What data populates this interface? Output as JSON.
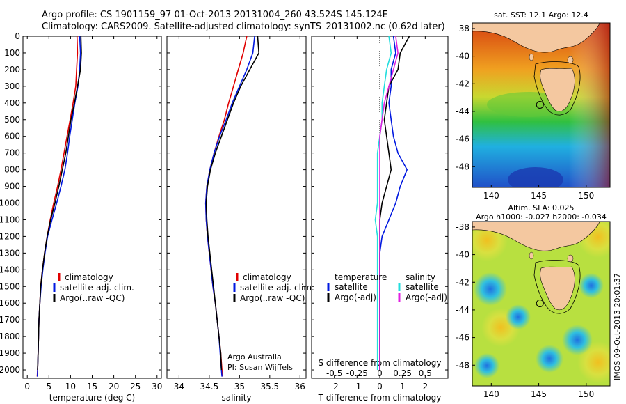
{
  "header": {
    "title_line1": "Argo profile: CS 1901159_97 01-Oct-2013 20131004_260 43.524S 145.124E",
    "title_line2": "Climatology: CARS2009. Satellite-adjusted climatology: synTS_20131002.nc (0.62d later)"
  },
  "colors": {
    "climatology": "#e00000",
    "satellite": "#0018e0",
    "argo": "#000000",
    "salinity_satellite": "#22dddd",
    "salinity_argo": "#e020e0"
  },
  "legend_labels": {
    "climatology": "climatology",
    "satellite_adj": "satellite-adj. clim.",
    "argo_raw": "Argo(..raw -QC)",
    "temperature_head": "temperature",
    "salinity_head": "salinity",
    "satellite": "satellite",
    "argo_adj": "Argo(-adj)"
  },
  "annotations": {
    "argo_australia": "Argo Australia",
    "pi": "PI: Susan Wijffels",
    "timestamp": "IMOS 09-Oct-2013 20:01:37"
  },
  "map_titles": {
    "sst": "sat. SST: 12.1  Argo: 12.4",
    "sla": "Altim. SLA: 0.025",
    "argo_h": "Argo h1000: -0.027 h2000: -0.034"
  },
  "chart_data": [
    {
      "type": "line",
      "name": "temperature-profile",
      "xlabel": "temperature (deg C)",
      "ylabel": "",
      "xlim": [
        -1,
        31
      ],
      "ylim": [
        2050,
        0
      ],
      "xticks": [
        "0",
        "5",
        "10",
        "15",
        "20",
        "25",
        "30"
      ],
      "xtick_values": [
        0,
        5,
        10,
        15,
        20,
        25,
        30
      ],
      "yticks": [
        "0",
        "100",
        "200",
        "300",
        "400",
        "500",
        "600",
        "700",
        "800",
        "900",
        "1000",
        "1100",
        "1200",
        "1300",
        "1400",
        "1500",
        "1600",
        "1700",
        "1800",
        "1900",
        "2000"
      ],
      "ytick_values": [
        0,
        100,
        200,
        300,
        400,
        500,
        600,
        700,
        800,
        900,
        1000,
        1100,
        1200,
        1300,
        1400,
        1500,
        1600,
        1700,
        1800,
        1900,
        2000
      ],
      "series": [
        {
          "name": "climatology",
          "color_key": "climatology",
          "x": [
            11.5,
            11.6,
            11.4,
            11.2,
            10.6,
            9.9,
            9.2,
            8.5,
            7.8,
            7.0,
            6.1,
            5.3,
            4.6,
            4.0,
            3.5,
            3.1,
            2.9,
            2.7,
            2.6,
            2.5,
            2.4,
            2.3
          ],
          "y": [
            0,
            100,
            200,
            300,
            400,
            500,
            600,
            700,
            800,
            900,
            1000,
            1100,
            1200,
            1300,
            1400,
            1500,
            1600,
            1700,
            1800,
            1900,
            2000,
            2040
          ]
        },
        {
          "name": "satellite-adj. clim.",
          "color_key": "satellite",
          "x": [
            12.1,
            12.3,
            12.1,
            11.7,
            11.0,
            10.4,
            9.8,
            9.3,
            8.7,
            7.8,
            6.8,
            5.7,
            4.7,
            4.1,
            3.6,
            3.2,
            2.9,
            2.7,
            2.6,
            2.5,
            2.4,
            2.35
          ],
          "y": [
            0,
            100,
            200,
            300,
            400,
            500,
            600,
            700,
            800,
            900,
            1000,
            1100,
            1200,
            1300,
            1400,
            1500,
            1600,
            1700,
            1800,
            1900,
            2000,
            2040
          ]
        },
        {
          "name": "Argo(..raw -QC)",
          "color_key": "argo",
          "x": [
            12.4,
            12.5,
            12.3,
            11.6,
            10.9,
            10.1,
            9.5,
            8.9,
            8.1,
            7.3,
            6.4,
            5.4,
            4.6,
            4.0,
            3.5,
            3.1,
            2.9,
            2.7,
            2.6,
            2.5,
            2.4
          ],
          "y": [
            0,
            100,
            200,
            300,
            400,
            500,
            600,
            700,
            800,
            900,
            1000,
            1100,
            1200,
            1300,
            1400,
            1500,
            1600,
            1700,
            1800,
            1900,
            2000
          ]
        }
      ]
    },
    {
      "type": "line",
      "name": "salinity-profile",
      "xlabel": "salinity",
      "ylabel": "",
      "xlim": [
        33.8,
        36.1
      ],
      "ylim": [
        2050,
        0
      ],
      "xticks": [
        "34",
        "34.5",
        "35",
        "35.5",
        "36"
      ],
      "xtick_values": [
        34,
        34.5,
        35,
        35.5,
        36
      ],
      "series": [
        {
          "name": "climatology",
          "color_key": "climatology",
          "x": [
            35.12,
            35.06,
            34.98,
            34.9,
            34.82,
            34.75,
            34.66,
            34.58,
            34.51,
            34.46,
            34.44,
            34.45,
            34.47,
            34.5,
            34.53,
            34.56,
            34.6,
            34.63,
            34.66,
            34.69,
            34.71,
            34.72
          ],
          "y": [
            0,
            100,
            200,
            300,
            400,
            500,
            600,
            700,
            800,
            900,
            1000,
            1100,
            1200,
            1300,
            1400,
            1500,
            1600,
            1700,
            1800,
            1900,
            2000,
            2040
          ]
        },
        {
          "name": "satellite-adj. clim.",
          "color_key": "satellite",
          "x": [
            35.25,
            35.22,
            35.12,
            35.0,
            34.88,
            34.78,
            34.67,
            34.58,
            34.51,
            34.46,
            34.44,
            34.45,
            34.47,
            34.5,
            34.53,
            34.56,
            34.6,
            34.63,
            34.66,
            34.68,
            34.7,
            34.71
          ],
          "y": [
            0,
            100,
            200,
            300,
            400,
            500,
            600,
            700,
            800,
            900,
            1000,
            1100,
            1200,
            1300,
            1400,
            1500,
            1600,
            1700,
            1800,
            1900,
            2000,
            2040
          ]
        },
        {
          "name": "Argo(..raw -QC)",
          "color_key": "argo",
          "x": [
            35.3,
            35.32,
            35.17,
            35.02,
            34.9,
            34.8,
            34.7,
            34.6,
            34.52,
            34.47,
            34.45,
            34.46,
            34.48,
            34.51,
            34.54,
            34.57,
            34.6,
            34.63,
            34.66,
            34.69,
            34.7
          ],
          "y": [
            0,
            100,
            200,
            300,
            400,
            500,
            600,
            700,
            800,
            900,
            1000,
            1100,
            1200,
            1300,
            1400,
            1500,
            1600,
            1700,
            1800,
            1900,
            2000
          ]
        }
      ]
    },
    {
      "type": "line",
      "name": "difference-from-climatology",
      "xlabel": "T difference from climatology",
      "xlabel2": "S difference from climatology",
      "xlim": [
        -3,
        3
      ],
      "ylim": [
        2050,
        0
      ],
      "xticks": [
        "-2",
        "-1",
        "0",
        "1",
        "2"
      ],
      "xtick_values": [
        -2,
        -1,
        0,
        1,
        2
      ],
      "xticks2": [
        "-0.5",
        "-0.25",
        "0",
        "0.25",
        "0.5"
      ],
      "xtick2_values": [
        -2,
        -1,
        0,
        1,
        2
      ],
      "series": [
        {
          "name": "temperature satellite",
          "color_key": "satellite",
          "x": [
            0.6,
            0.7,
            0.5,
            0.5,
            0.4,
            0.5,
            0.6,
            0.8,
            1.2,
            0.9,
            0.7,
            0.4,
            0.1,
            0.0,
            0.0,
            0.0,
            0.0,
            0.0,
            0.0,
            0.0,
            0.0
          ],
          "y": [
            0,
            100,
            200,
            300,
            400,
            500,
            600,
            700,
            800,
            900,
            1000,
            1100,
            1200,
            1300,
            1400,
            1500,
            1600,
            1700,
            1800,
            1900,
            2000
          ]
        },
        {
          "name": "temperature Argo(-adj)",
          "color_key": "argo",
          "x": [
            1.3,
            0.9,
            0.8,
            0.4,
            0.3,
            0.2,
            0.3,
            0.4,
            0.5,
            0.3,
            0.1,
            0.0,
            0.0,
            0.0,
            0.0,
            0.0,
            0.0,
            0.0,
            0.0,
            0.0,
            0.0
          ],
          "y": [
            0,
            100,
            200,
            300,
            400,
            500,
            600,
            700,
            800,
            900,
            1000,
            1100,
            1200,
            1300,
            1400,
            1500,
            1600,
            1700,
            1800,
            1900,
            2000
          ]
        },
        {
          "name": "salinity satellite",
          "color_key": "salinity_satellite",
          "x": [
            0.4,
            0.5,
            0.3,
            0.2,
            0.1,
            0.1,
            0.0,
            -0.1,
            -0.1,
            -0.1,
            -0.1,
            -0.2,
            -0.1,
            -0.1,
            -0.1,
            -0.1,
            -0.1,
            -0.1,
            -0.1,
            -0.1,
            -0.1
          ],
          "y": [
            0,
            100,
            200,
            300,
            400,
            500,
            600,
            700,
            800,
            900,
            1000,
            1100,
            1200,
            1300,
            1400,
            1500,
            1600,
            1700,
            1800,
            1900,
            2000
          ]
        },
        {
          "name": "salinity Argo(-adj)",
          "color_key": "salinity_argo",
          "x": [
            0.7,
            0.8,
            0.6,
            0.4,
            0.2,
            0.1,
            0.0,
            0.0,
            0.0,
            0.0,
            0.0,
            0.0,
            0.0,
            0.0,
            0.0,
            0.0,
            0.0,
            0.0,
            0.0,
            0.0,
            0.0
          ],
          "y": [
            0,
            100,
            200,
            300,
            400,
            500,
            600,
            700,
            800,
            900,
            1000,
            1100,
            1200,
            1300,
            1400,
            1500,
            1600,
            1700,
            1800,
            1900,
            2000
          ]
        }
      ]
    },
    {
      "type": "heatmap",
      "name": "sst-map",
      "xticks": [
        "140",
        "145",
        "150"
      ],
      "xtick_values": [
        140,
        145,
        150
      ],
      "yticks": [
        "-38",
        "-40",
        "-42",
        "-44",
        "-46",
        "-48"
      ],
      "ytick_values": [
        -38,
        -40,
        -42,
        -44,
        -46,
        -48
      ],
      "xlim": [
        138,
        152.5
      ],
      "ylim": [
        -49.5,
        -37.6
      ],
      "profile_location": [
        145.124,
        -43.524
      ]
    },
    {
      "type": "heatmap",
      "name": "sla-map",
      "xticks": [
        "140",
        "145",
        "150"
      ],
      "xtick_values": [
        140,
        145,
        150
      ],
      "yticks": [
        "-38",
        "-40",
        "-42",
        "-44",
        "-46",
        "-48"
      ],
      "ytick_values": [
        -38,
        -40,
        -42,
        -44,
        -46,
        -48
      ],
      "xlim": [
        138,
        152.5
      ],
      "ylim": [
        -49.5,
        -37.6
      ],
      "profile_location": [
        145.124,
        -43.524
      ]
    }
  ]
}
